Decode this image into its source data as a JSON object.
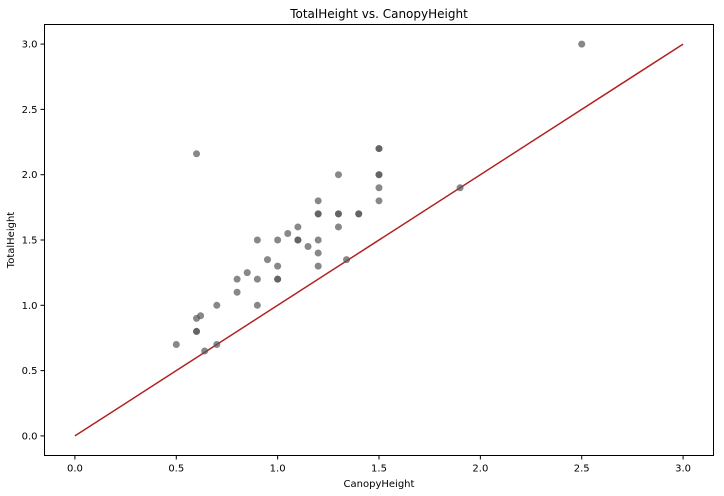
{
  "chart_data": {
    "type": "scatter",
    "title": "TotalHeight vs. CanopyHeight",
    "xlabel": "CanopyHeight",
    "ylabel": "TotalHeight",
    "xlim": [
      -0.15,
      3.15
    ],
    "ylim": [
      -0.15,
      3.15
    ],
    "xticks": [
      "0.0",
      "0.5",
      "1.0",
      "1.5",
      "2.0",
      "2.5",
      "3.0"
    ],
    "yticks": [
      "0.0",
      "0.5",
      "1.0",
      "1.5",
      "2.0",
      "2.5",
      "3.0"
    ],
    "grid": false,
    "colors": {
      "points": "#555555",
      "reference_line": "#b22222"
    },
    "reference_line": {
      "from": [
        0,
        0
      ],
      "to": [
        3,
        3
      ],
      "label": ""
    },
    "points": [
      [
        0.5,
        0.7
      ],
      [
        0.6,
        0.8
      ],
      [
        0.6,
        0.8
      ],
      [
        0.6,
        0.9
      ],
      [
        0.6,
        2.16
      ],
      [
        0.62,
        0.92
      ],
      [
        0.64,
        0.65
      ],
      [
        0.7,
        0.7
      ],
      [
        0.7,
        1.0
      ],
      [
        0.8,
        1.1
      ],
      [
        0.8,
        1.2
      ],
      [
        0.85,
        1.25
      ],
      [
        0.9,
        1.0
      ],
      [
        0.9,
        1.2
      ],
      [
        0.9,
        1.5
      ],
      [
        0.95,
        1.35
      ],
      [
        1.0,
        1.2
      ],
      [
        1.0,
        1.2
      ],
      [
        1.0,
        1.3
      ],
      [
        1.0,
        1.5
      ],
      [
        1.05,
        1.55
      ],
      [
        1.1,
        1.5
      ],
      [
        1.1,
        1.5
      ],
      [
        1.1,
        1.6
      ],
      [
        1.15,
        1.45
      ],
      [
        1.2,
        1.3
      ],
      [
        1.2,
        1.4
      ],
      [
        1.2,
        1.5
      ],
      [
        1.2,
        1.7
      ],
      [
        1.2,
        1.7
      ],
      [
        1.2,
        1.8
      ],
      [
        1.3,
        1.6
      ],
      [
        1.3,
        1.7
      ],
      [
        1.3,
        1.7
      ],
      [
        1.3,
        2.0
      ],
      [
        1.34,
        1.35
      ],
      [
        1.4,
        1.7
      ],
      [
        1.4,
        1.7
      ],
      [
        1.5,
        1.8
      ],
      [
        1.5,
        1.9
      ],
      [
        1.5,
        2.0
      ],
      [
        1.5,
        2.0
      ],
      [
        1.5,
        2.2
      ],
      [
        1.5,
        2.2
      ],
      [
        1.9,
        1.9
      ],
      [
        2.5,
        3.0
      ]
    ]
  }
}
